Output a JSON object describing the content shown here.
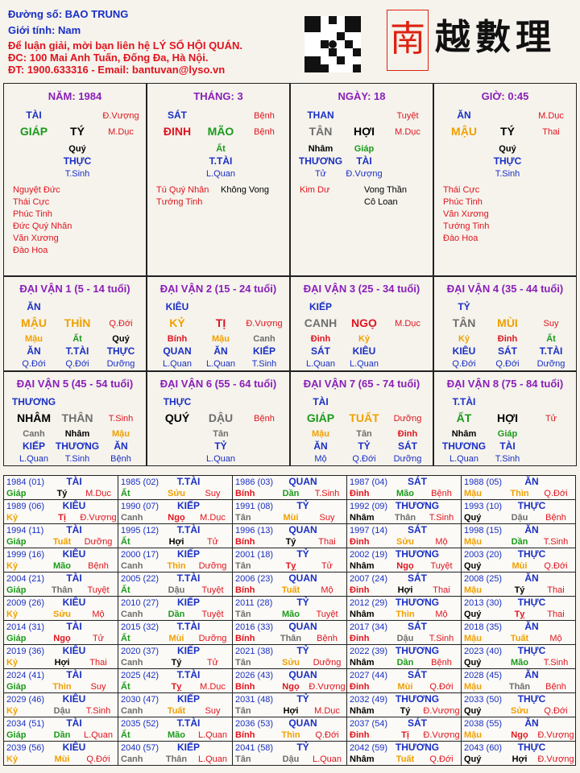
{
  "header": {
    "lines": [
      "Đường số: BAO TRUNG",
      "Giới tính:  Nam",
      "Để luận giải, mời bạn liên hệ LÝ SỐ HỘI QUÁN.",
      "ĐC: 100 Mai Anh Tuấn, Đống Đa, Hà Nội.",
      "ĐT: 1900.633316 - Email: bantuvan@lyso.vn"
    ],
    "seal": "南",
    "brand": "越數理"
  },
  "palette": {
    "header_blue": "#1a2fc4",
    "header_red": "#e0141e",
    "title": "#8a1fb8",
    "god": "#1a2fc4",
    "stage": "#e0141e",
    "minor": "#1a2fc4",
    "star_red": "#e0141e",
    "star_black": "#000000",
    "label": "#1a2fc4"
  },
  "colors": {
    "Giáp": "#1a9a1a",
    "Ất": "#1a9a1a",
    "Bính": "#e0141e",
    "Đinh": "#e0141e",
    "Mậu": "#f0a000",
    "Kỷ": "#f0a000",
    "Canh": "#6e6e6e",
    "Tân": "#6e6e6e",
    "Nhâm": "#000000",
    "Quý": "#000000",
    "Tý": "#000000",
    "Sửu": "#f0a000",
    "Dần": "#1a9a1a",
    "Mão": "#1a9a1a",
    "Thìn": "#f0a000",
    "Tị": "#e0141e",
    "Tỵ": "#e0141e",
    "Ngọ": "#e0141e",
    "Mùi": "#f0a000",
    "Thân": "#6e6e6e",
    "Dậu": "#6e6e6e",
    "Tuất": "#f0a000",
    "Hợi": "#000000",
    "GIÁP": "#1a9a1a",
    "ẤT": "#1a9a1a",
    "ĐINH": "#e0141e",
    "MẬU": "#f0a000",
    "KỶ": "#f0a000",
    "CANH": "#6e6e6e",
    "TÂN": "#6e6e6e",
    "NHÂM": "#000000",
    "QUÝ": "#000000",
    "TÝ": "#000000",
    "MÃO": "#1a9a1a",
    "THÌN": "#f0a000",
    "TỊ": "#e0141e",
    "NGỌ": "#e0141e",
    "MÙI": "#f0a000",
    "THÂN": "#6e6e6e",
    "DẬU": "#6e6e6e",
    "TUẤT": "#f0a000",
    "HỢI": "#000000"
  },
  "pillars": [
    {
      "title": "NĂM: 1984",
      "god": "TÀI",
      "stage_top": "Đ.Vượng",
      "can": "GIÁP",
      "chi": "TÝ",
      "stage": "M.Dục",
      "hidden": [
        "Quý"
      ],
      "hidden_gods": [
        "THỰC"
      ],
      "hidden_stages": [
        "T.Sinh"
      ],
      "stars_red": [
        "Nguyệt Đức",
        "Thái Cực",
        "Phúc Tinh",
        "Đức Quý Nhân",
        "Văn Xương",
        "Đào Hoa"
      ],
      "stars_black": []
    },
    {
      "title": "THÁNG: 3",
      "god": "SÁT",
      "stage_top": "Bệnh",
      "can": "ĐINH",
      "chi": "MÃO",
      "stage": "Bệnh",
      "hidden": [
        "Ất"
      ],
      "hidden_gods": [
        "T.TÀI"
      ],
      "hidden_stages": [
        "L.Quan"
      ],
      "stars_red": [
        "Tú Quý Nhân",
        "Tướng Tinh"
      ],
      "stars_black": [
        "Không Vong"
      ]
    },
    {
      "title": "NGÀY: 18",
      "god": "THAN",
      "stage_top": "Tuyệt",
      "can": "TÂN",
      "chi": "HỢI",
      "stage": "M.Dục",
      "hidden": [
        "Nhâm",
        "Giáp"
      ],
      "hidden_gods": [
        "THƯƠNG",
        "TÀI"
      ],
      "hidden_stages": [
        "Tử",
        "Đ.Vượng"
      ],
      "stars_red": [
        "Kim Dư"
      ],
      "stars_black": [
        "Vong Thần",
        "Cô Loan"
      ]
    },
    {
      "title": "GIỜ: 0:45",
      "god": "ĂN",
      "stage_top": "M.Dục",
      "can": "MẬU",
      "chi": "TÝ",
      "stage": "Thai",
      "hidden": [
        "Quý"
      ],
      "hidden_gods": [
        "THỰC"
      ],
      "hidden_stages": [
        "T.Sinh"
      ],
      "stars_red": [
        "Thái Cực",
        "Phúc Tinh",
        "Văn Xương",
        "Tướng Tinh",
        "Đào Hoa"
      ],
      "stars_black": []
    }
  ],
  "luck": [
    {
      "title": "ĐẠI VẬN 1 (5 - 14 tuổi)",
      "god": "ĂN",
      "can": "MẬU",
      "chi": "THÌN",
      "stage": "Q.Đới",
      "hidden": [
        "Mậu",
        "Ất",
        "Quý"
      ],
      "hidden_gods": [
        "ĂN",
        "T.TÀI",
        "THỰC"
      ],
      "hidden_stages": [
        "Q.Đới",
        "Q.Đới",
        "Dưỡng"
      ]
    },
    {
      "title": "ĐẠI VẬN 2 (15 - 24 tuổi)",
      "god": "KIÊU",
      "can": "KỶ",
      "chi": "TỊ",
      "stage": "Đ.Vượng",
      "hidden": [
        "Bính",
        "Mậu",
        "Canh"
      ],
      "hidden_gods": [
        "QUAN",
        "ĂN",
        "KIẾP"
      ],
      "hidden_stages": [
        "L.Quan",
        "L.Quan",
        "T.Sinh"
      ]
    },
    {
      "title": "ĐẠI VẬN 3 (25 - 34 tuổi)",
      "god": "KIẾP",
      "can": "CANH",
      "chi": "NGỌ",
      "stage": "M.Dục",
      "hidden": [
        "Đinh",
        "Kỷ"
      ],
      "hidden_gods": [
        "SÁT",
        "KIÊU"
      ],
      "hidden_stages": [
        "L.Quan",
        "L.Quan"
      ]
    },
    {
      "title": "ĐẠI VẬN 4 (35 - 44 tuổi)",
      "god": "TỶ",
      "can": "TÂN",
      "chi": "MÙI",
      "stage": "Suy",
      "hidden": [
        "Kỷ",
        "Đinh",
        "Ất"
      ],
      "hidden_gods": [
        "KIÊU",
        "SÁT",
        "T.TÀI"
      ],
      "hidden_stages": [
        "Q.Đới",
        "Q.Đới",
        "Dưỡng"
      ]
    },
    {
      "title": "ĐẠI VẬN 5 (45 - 54 tuổi)",
      "god": "THƯƠNG",
      "can": "NHÂM",
      "chi": "THÂN",
      "stage": "T.Sinh",
      "hidden": [
        "Canh",
        "Nhâm",
        "Mậu"
      ],
      "hidden_gods": [
        "KIẾP",
        "THƯƠNG",
        "ĂN"
      ],
      "hidden_stages": [
        "L.Quan",
        "T.Sinh",
        "Bệnh"
      ]
    },
    {
      "title": "ĐẠI VẬN 6 (55 - 64 tuổi)",
      "god": "THỰC",
      "can": "QUÝ",
      "chi": "DẬU",
      "stage": "Bệnh",
      "hidden": [
        "Tân"
      ],
      "hidden_gods": [
        "TỶ"
      ],
      "hidden_stages": [
        "L.Quan"
      ]
    },
    {
      "title": "ĐẠI VẬN 7 (65 - 74 tuổi)",
      "god": "TÀI",
      "can": "GIÁP",
      "chi": "TUẤT",
      "stage": "Dưỡng",
      "hidden": [
        "Mậu",
        "Tân",
        "Đinh"
      ],
      "hidden_gods": [
        "ĂN",
        "TỶ",
        "SÁT"
      ],
      "hidden_stages": [
        "Mộ",
        "Q.Đới",
        "Dưỡng"
      ]
    },
    {
      "title": "ĐẠI VẬN 8 (75 - 84 tuổi)",
      "god": "T.TÀI",
      "can": "ẤT",
      "chi": "HỢI",
      "stage": "Tử",
      "hidden": [
        "Nhâm",
        "Giáp"
      ],
      "hidden_gods": [
        "THƯƠNG",
        "TÀI"
      ],
      "hidden_stages": [
        "L.Quan",
        "T.Sinh"
      ]
    }
  ],
  "years": [
    [
      [
        "1984 (01)",
        "TÀI",
        "Giáp",
        "Tý",
        "M.Dục"
      ],
      [
        "1985 (02)",
        "T.TÀI",
        "Ất",
        "Sửu",
        "Suy"
      ],
      [
        "1986 (03)",
        "QUAN",
        "Bính",
        "Dần",
        "T.Sinh"
      ],
      [
        "1987 (04)",
        "SÁT",
        "Đinh",
        "Mão",
        "Bệnh"
      ],
      [
        "1988 (05)",
        "ĂN",
        "Mậu",
        "Thìn",
        "Q.Đới"
      ]
    ],
    [
      [
        "1989 (06)",
        "KIÊU",
        "Kỷ",
        "Tị",
        "Đ.Vượng"
      ],
      [
        "1990 (07)",
        "KIẾP",
        "Canh",
        "Ngọ",
        "M.Dục"
      ],
      [
        "1991 (08)",
        "TỶ",
        "Tân",
        "Mùi",
        "Suy"
      ],
      [
        "1992 (09)",
        "THƯƠNG",
        "Nhâm",
        "Thân",
        "T.Sinh"
      ],
      [
        "1993 (10)",
        "THỰC",
        "Quý",
        "Dậu",
        "Bệnh"
      ]
    ],
    [
      [
        "1994 (11)",
        "TÀI",
        "Giáp",
        "Tuất",
        "Dưỡng"
      ],
      [
        "1995 (12)",
        "T.TÀI",
        "Ất",
        "Hợi",
        "Tử"
      ],
      [
        "1996 (13)",
        "QUAN",
        "Bính",
        "Tý",
        "Thai"
      ],
      [
        "1997 (14)",
        "SÁT",
        "Đinh",
        "Sửu",
        "Mộ"
      ],
      [
        "1998 (15)",
        "ĂN",
        "Mậu",
        "Dần",
        "T.Sinh"
      ]
    ],
    [
      [
        "1999 (16)",
        "KIÊU",
        "Kỷ",
        "Mão",
        "Bệnh"
      ],
      [
        "2000 (17)",
        "KIẾP",
        "Canh",
        "Thìn",
        "Dưỡng"
      ],
      [
        "2001 (18)",
        "TỶ",
        "Tân",
        "Tỵ",
        "Tử"
      ],
      [
        "2002 (19)",
        "THƯƠNG",
        "Nhâm",
        "Ngọ",
        "Tuyệt"
      ],
      [
        "2003 (20)",
        "THỰC",
        "Quý",
        "Mùi",
        "Q.Đới"
      ]
    ],
    [
      [
        "2004 (21)",
        "TÀI",
        "Giáp",
        "Thân",
        "Tuyệt"
      ],
      [
        "2005 (22)",
        "T.TÀI",
        "Ất",
        "Dậu",
        "Tuyệt"
      ],
      [
        "2006 (23)",
        "QUAN",
        "Bính",
        "Tuất",
        "Mộ"
      ],
      [
        "2007 (24)",
        "SÁT",
        "Đinh",
        "Hợi",
        "Thai"
      ],
      [
        "2008 (25)",
        "ĂN",
        "Mậu",
        "Tý",
        "Thai"
      ]
    ],
    [
      [
        "2009 (26)",
        "KIÊU",
        "Kỷ",
        "Sửu",
        "Mộ"
      ],
      [
        "2010 (27)",
        "KIẾP",
        "Canh",
        "Dần",
        "Tuyệt"
      ],
      [
        "2011 (28)",
        "TỶ",
        "Tân",
        "Mão",
        "Tuyệt"
      ],
      [
        "2012 (29)",
        "THƯƠNG",
        "Nhâm",
        "Thìn",
        "Mộ"
      ],
      [
        "2013 (30)",
        "THỰC",
        "Quý",
        "Tỵ",
        "Thai"
      ]
    ],
    [
      [
        "2014 (31)",
        "TÀI",
        "Giáp",
        "Ngọ",
        "Tử"
      ],
      [
        "2015 (32)",
        "T.TÀI",
        "Ất",
        "Mùi",
        "Dưỡng"
      ],
      [
        "2016 (33)",
        "QUAN",
        "Bính",
        "Thân",
        "Bệnh"
      ],
      [
        "2017 (34)",
        "SÁT",
        "Đinh",
        "Dậu",
        "T.Sinh"
      ],
      [
        "2018 (35)",
        "ĂN",
        "Mậu",
        "Tuất",
        "Mộ"
      ]
    ],
    [
      [
        "2019 (36)",
        "KIÊU",
        "Kỷ",
        "Hợi",
        "Thai"
      ],
      [
        "2020 (37)",
        "KIẾP",
        "Canh",
        "Tý",
        "Tử"
      ],
      [
        "2021 (38)",
        "TỶ",
        "Tân",
        "Sửu",
        "Dưỡng"
      ],
      [
        "2022 (39)",
        "THƯƠNG",
        "Nhâm",
        "Dần",
        "Bệnh"
      ],
      [
        "2023 (40)",
        "THỰC",
        "Quý",
        "Mão",
        "T.Sinh"
      ]
    ],
    [
      [
        "2024 (41)",
        "TÀI",
        "Giáp",
        "Thìn",
        "Suy"
      ],
      [
        "2025 (42)",
        "T.TÀI",
        "Ất",
        "Tỵ",
        "M.Dục"
      ],
      [
        "2026 (43)",
        "QUAN",
        "Bính",
        "Ngọ",
        "Đ.Vượng"
      ],
      [
        "2027 (44)",
        "SÁT",
        "Đinh",
        "Mùi",
        "Q.Đới"
      ],
      [
        "2028 (45)",
        "ĂN",
        "Mậu",
        "Thân",
        "Bệnh"
      ]
    ],
    [
      [
        "2029 (46)",
        "KIÊU",
        "Kỷ",
        "Dậu",
        "T.Sinh"
      ],
      [
        "2030 (47)",
        "KIẾP",
        "Canh",
        "Tuất",
        "Suy"
      ],
      [
        "2031 (48)",
        "TỶ",
        "Tân",
        "Hợi",
        "M.Dục"
      ],
      [
        "2032 (49)",
        "THƯƠNG",
        "Nhâm",
        "Tý",
        "Đ.Vượng"
      ],
      [
        "2033 (50)",
        "THỰC",
        "Quý",
        "Sửu",
        "Q.Đới"
      ]
    ],
    [
      [
        "2034 (51)",
        "TÀI",
        "Giáp",
        "Dần",
        "L.Quan"
      ],
      [
        "2035 (52)",
        "T.TÀI",
        "Ất",
        "Mão",
        "L.Quan"
      ],
      [
        "2036 (53)",
        "QUAN",
        "Bính",
        "Thìn",
        "Q.Đới"
      ],
      [
        "2037 (54)",
        "SÁT",
        "Đinh",
        "Tị",
        "Đ.Vượng"
      ],
      [
        "2038 (55)",
        "ĂN",
        "Mậu",
        "Ngọ",
        "Đ.Vượng"
      ]
    ],
    [
      [
        "2039 (56)",
        "KIÊU",
        "Kỷ",
        "Mùi",
        "Q.Đới"
      ],
      [
        "2040 (57)",
        "KIẾP",
        "Canh",
        "Thân",
        "L.Quan"
      ],
      [
        "2041 (58)",
        "TỶ",
        "Tân",
        "Dậu",
        "L.Quan"
      ],
      [
        "2042 (59)",
        "THƯƠNG",
        "Nhâm",
        "Tuất",
        "Q.Đới"
      ],
      [
        "2043 (60)",
        "THỰC",
        "Quý",
        "Hợi",
        "Đ.Vượng"
      ]
    ]
  ]
}
